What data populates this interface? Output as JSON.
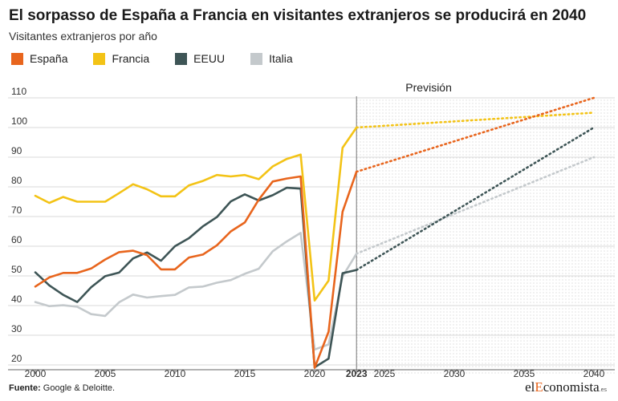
{
  "title": "El sorpasso de España a Francia en visitantes extranjeros se producirá en 2040",
  "subtitle": "Visitantes extranjeros por año",
  "source": {
    "label": "Fuente:",
    "text": "Google & Deloitte."
  },
  "brand": {
    "a": "el",
    "b": "E",
    "c": "conomista",
    "d": ".es"
  },
  "chart_data": {
    "type": "line",
    "ylim": [
      20,
      110
    ],
    "yticks": [
      "20",
      "30",
      "40",
      "50",
      "60",
      "70",
      "80",
      "90",
      "100",
      "110"
    ],
    "xlim": [
      2000,
      2040
    ],
    "xticks": [
      {
        "value": 2000,
        "label": "2000",
        "bold": false
      },
      {
        "value": 2005,
        "label": "2005",
        "bold": false
      },
      {
        "value": 2010,
        "label": "2010",
        "bold": false
      },
      {
        "value": 2015,
        "label": "2015",
        "bold": false
      },
      {
        "value": 2020,
        "label": "2020",
        "bold": false
      },
      {
        "value": 2023,
        "label": "2023",
        "bold": true
      },
      {
        "value": 2025,
        "label": "2025",
        "bold": false
      },
      {
        "value": 2030,
        "label": "2030",
        "bold": false
      },
      {
        "value": 2035,
        "label": "2035",
        "bold": false
      },
      {
        "value": 2040,
        "label": "2040",
        "bold": false
      }
    ],
    "forecast": {
      "start": 2023,
      "end": 2040,
      "label": "Previsión"
    },
    "grid": true,
    "legend_position": "top-left",
    "series": [
      {
        "name": "España",
        "color": "#e8651d",
        "x": [
          2000,
          2001,
          2002,
          2003,
          2004,
          2005,
          2006,
          2007,
          2008,
          2009,
          2010,
          2011,
          2012,
          2013,
          2014,
          2015,
          2016,
          2017,
          2018,
          2019,
          2020,
          2021,
          2022,
          2023
        ],
        "values": [
          46.4,
          49.5,
          51,
          51,
          52.5,
          55.5,
          58,
          58.5,
          57,
          52.2,
          52.2,
          56.2,
          57.2,
          60.3,
          65,
          68,
          75.7,
          81.8,
          82.8,
          83.5,
          19,
          31.2,
          71.6,
          85.1
        ],
        "forecast": [
          [
            2023,
            85.1
          ],
          [
            2040,
            110
          ]
        ]
      },
      {
        "name": "Francia",
        "color": "#f3c316",
        "x": [
          2000,
          2001,
          2002,
          2003,
          2004,
          2005,
          2006,
          2007,
          2008,
          2009,
          2010,
          2011,
          2012,
          2013,
          2014,
          2015,
          2016,
          2017,
          2018,
          2019,
          2020,
          2021,
          2022,
          2023
        ],
        "values": [
          77,
          74.6,
          76.6,
          75,
          75,
          75,
          77.9,
          80.9,
          79.2,
          76.8,
          76.8,
          80.5,
          82,
          84,
          83.5,
          84,
          82.6,
          86.9,
          89.4,
          90.9,
          41.7,
          48.4,
          93.2,
          100
        ],
        "forecast": [
          [
            2023,
            100
          ],
          [
            2040,
            105
          ]
        ]
      },
      {
        "name": "EEUU",
        "color": "#3e5556",
        "x": [
          2000,
          2001,
          2002,
          2003,
          2004,
          2005,
          2006,
          2007,
          2008,
          2009,
          2010,
          2011,
          2012,
          2013,
          2014,
          2015,
          2016,
          2017,
          2018,
          2019,
          2020,
          2021,
          2022,
          2023
        ],
        "values": [
          51.2,
          46.8,
          43.6,
          41.2,
          46.2,
          49.9,
          51.1,
          55.9,
          57.9,
          55.1,
          60,
          62.7,
          66.7,
          69.8,
          75.1,
          77.5,
          75.4,
          77.2,
          79.7,
          79.4,
          19.2,
          22.1,
          50.9,
          52
        ],
        "forecast": [
          [
            2023,
            52
          ],
          [
            2040,
            100
          ]
        ]
      },
      {
        "name": "Italia",
        "color": "#c4c9cc",
        "x": [
          2000,
          2001,
          2002,
          2003,
          2004,
          2005,
          2006,
          2007,
          2008,
          2009,
          2010,
          2011,
          2012,
          2013,
          2014,
          2015,
          2016,
          2017,
          2018,
          2019,
          2020,
          2021,
          2022,
          2023
        ],
        "values": [
          41.2,
          39.8,
          40.1,
          39.6,
          37.1,
          36.5,
          41.1,
          43.7,
          42.7,
          43.2,
          43.6,
          46.1,
          46.4,
          47.7,
          48.6,
          50.7,
          52.4,
          58.3,
          61.6,
          64.5,
          25.2,
          26.9,
          49.8,
          57.5
        ],
        "forecast": [
          [
            2023,
            57.5
          ],
          [
            2040,
            90
          ]
        ]
      }
    ]
  }
}
